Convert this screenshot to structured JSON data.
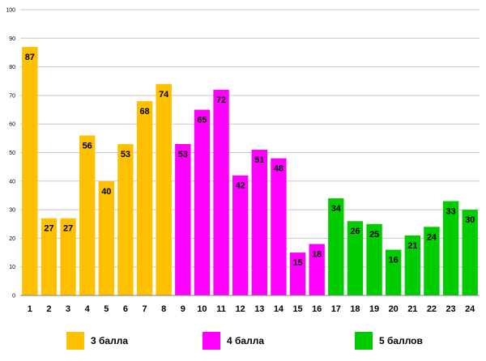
{
  "chart_data": {
    "type": "bar",
    "title": "",
    "xlabel": "",
    "ylabel": "",
    "ylim": [
      0,
      100
    ],
    "yticks": [
      0,
      10,
      20,
      30,
      40,
      50,
      60,
      70,
      80,
      90,
      100
    ],
    "grid": true,
    "categories": [
      "1",
      "2",
      "3",
      "4",
      "5",
      "6",
      "7",
      "8",
      "9",
      "10",
      "11",
      "12",
      "13",
      "14",
      "15",
      "16",
      "17",
      "18",
      "19",
      "20",
      "21",
      "22",
      "23",
      "24"
    ],
    "values": [
      87,
      27,
      27,
      56,
      40,
      53,
      68,
      74,
      53,
      65,
      72,
      42,
      51,
      48,
      15,
      18,
      34,
      26,
      25,
      16,
      21,
      24,
      33,
      30
    ],
    "groups": [
      0,
      0,
      0,
      0,
      0,
      0,
      0,
      0,
      1,
      1,
      1,
      1,
      1,
      1,
      1,
      1,
      2,
      2,
      2,
      2,
      2,
      2,
      2,
      2
    ],
    "series": [
      {
        "name": "3 балла",
        "color": "#FFC000"
      },
      {
        "name": "4 балла",
        "color": "#FF00FF"
      },
      {
        "name": "5 баллов",
        "color": "#00CC00"
      }
    ],
    "legend_position": "bottom"
  }
}
